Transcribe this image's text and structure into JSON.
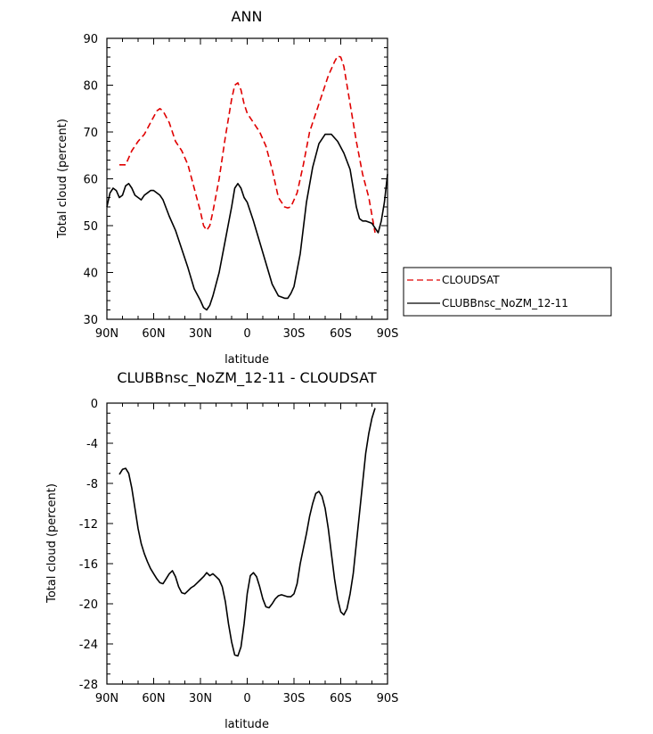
{
  "chart_data": [
    {
      "type": "line",
      "title": "ANN",
      "xlabel": "latitude",
      "ylabel": "Total cloud (percent)",
      "x_tick_labels": [
        "90N",
        "60N",
        "30N",
        "0",
        "30S",
        "60S",
        "90S"
      ],
      "x_tick_values": [
        90,
        60,
        30,
        0,
        -30,
        -60,
        -90
      ],
      "y_tick_labels": [
        "30",
        "40",
        "50",
        "60",
        "70",
        "80",
        "90"
      ],
      "y_tick_values": [
        30,
        40,
        50,
        60,
        70,
        80,
        90
      ],
      "xlim": [
        90,
        -90
      ],
      "ylim": [
        30,
        90
      ],
      "legend_position": "right",
      "series": [
        {
          "name": "CLOUDSAT",
          "color": "#e00000",
          "style": "dashed",
          "x": [
            82,
            78,
            74,
            70,
            66,
            62,
            58,
            56,
            54,
            50,
            46,
            42,
            38,
            34,
            30,
            28,
            26,
            24,
            22,
            18,
            14,
            10,
            8,
            6,
            4,
            2,
            0,
            -4,
            -8,
            -12,
            -16,
            -20,
            -24,
            -26,
            -28,
            -32,
            -36,
            -40,
            -44,
            -48,
            -52,
            -56,
            -58,
            -60,
            -62,
            -66,
            -70,
            -74,
            -78,
            -82
          ],
          "y": [
            63,
            63,
            66,
            68,
            69.5,
            72,
            74.5,
            75,
            74.5,
            72,
            68,
            66,
            63,
            58,
            53,
            50,
            49,
            50,
            53,
            60,
            69,
            77,
            80,
            80.5,
            79,
            76,
            74,
            72,
            70,
            67,
            62,
            56,
            54,
            53.8,
            54,
            57,
            63,
            70,
            74,
            78,
            82,
            85,
            86.2,
            86,
            84,
            76,
            68,
            61,
            56,
            48.5
          ]
        },
        {
          "name": "CLUBBnsc_NoZM_12-11",
          "color": "#000000",
          "style": "solid",
          "x": [
            90,
            88,
            86,
            84,
            82,
            80,
            78,
            76,
            74,
            72,
            70,
            68,
            66,
            64,
            62,
            60,
            58,
            56,
            54,
            50,
            46,
            42,
            38,
            34,
            30,
            28,
            26,
            24,
            22,
            18,
            14,
            10,
            8,
            6,
            4,
            2,
            0,
            -4,
            -8,
            -12,
            -16,
            -20,
            -24,
            -26,
            -28,
            -30,
            -34,
            -38,
            -42,
            -46,
            -50,
            -54,
            -58,
            -62,
            -66,
            -70,
            -72,
            -74,
            -76,
            -80,
            -84,
            -86,
            -88,
            -90
          ],
          "y": [
            54,
            57,
            58,
            57.5,
            56,
            56.5,
            58.5,
            59,
            58,
            56.5,
            56,
            55.5,
            56.5,
            57,
            57.5,
            57.5,
            57,
            56.5,
            55.5,
            52,
            49,
            45,
            41,
            36.5,
            34,
            32.5,
            32,
            33,
            35,
            40,
            47,
            54,
            58,
            59,
            58,
            56,
            55,
            51,
            46.5,
            42,
            37.5,
            35,
            34.5,
            34.5,
            35.5,
            37,
            44,
            55,
            62.5,
            67.5,
            69.5,
            69.5,
            68,
            65.5,
            62,
            54,
            51.5,
            51,
            51,
            50.5,
            48.5,
            51,
            55,
            61
          ]
        }
      ]
    },
    {
      "type": "line",
      "title": "CLUBBnsc_NoZM_12-11 - CLOUDSAT",
      "xlabel": "latitude",
      "ylabel": "Total cloud (percent)",
      "x_tick_labels": [
        "90N",
        "60N",
        "30N",
        "0",
        "30S",
        "60S",
        "90S"
      ],
      "x_tick_values": [
        90,
        60,
        30,
        0,
        -30,
        -60,
        -90
      ],
      "y_tick_labels": [
        "0",
        "-4",
        "-8",
        "-12",
        "-16",
        "-20",
        "-24",
        "-28"
      ],
      "y_tick_values": [
        0,
        -4,
        -8,
        -12,
        -16,
        -20,
        -24,
        -28
      ],
      "xlim": [
        90,
        -90
      ],
      "ylim": [
        -28,
        0
      ],
      "series": [
        {
          "color": "#000000",
          "style": "solid",
          "x": [
            82,
            80,
            78,
            76,
            74,
            72,
            70,
            68,
            66,
            64,
            62,
            60,
            58,
            56,
            54,
            52,
            50,
            48,
            46,
            44,
            42,
            40,
            38,
            36,
            34,
            32,
            30,
            28,
            26,
            24,
            22,
            20,
            18,
            16,
            14,
            12,
            10,
            8,
            6,
            4,
            2,
            0,
            -2,
            -4,
            -6,
            -8,
            -10,
            -12,
            -14,
            -16,
            -18,
            -20,
            -22,
            -24,
            -26,
            -28,
            -30,
            -32,
            -34,
            -36,
            -38,
            -40,
            -42,
            -44,
            -46,
            -48,
            -50,
            -52,
            -54,
            -56,
            -58,
            -60,
            -62,
            -64,
            -66,
            -68,
            -70,
            -72,
            -74,
            -76,
            -78,
            -80,
            -82
          ],
          "y": [
            -7.1,
            -6.6,
            -6.5,
            -7.0,
            -8.5,
            -10.5,
            -12.5,
            -14.0,
            -15.0,
            -15.8,
            -16.5,
            -17.0,
            -17.5,
            -17.9,
            -18.0,
            -17.5,
            -17.0,
            -16.7,
            -17.3,
            -18.3,
            -18.9,
            -19.0,
            -18.7,
            -18.4,
            -18.2,
            -17.9,
            -17.6,
            -17.3,
            -16.9,
            -17.2,
            -17.0,
            -17.3,
            -17.6,
            -18.3,
            -19.8,
            -22.0,
            -23.8,
            -25.1,
            -25.2,
            -24.3,
            -22.0,
            -19.0,
            -17.2,
            -16.9,
            -17.3,
            -18.3,
            -19.5,
            -20.3,
            -20.4,
            -20.0,
            -19.5,
            -19.2,
            -19.1,
            -19.2,
            -19.3,
            -19.3,
            -19.0,
            -18.0,
            -16.0,
            -14.5,
            -13.0,
            -11.3,
            -10.0,
            -9.0,
            -8.8,
            -9.3,
            -10.5,
            -12.5,
            -15.0,
            -17.5,
            -19.5,
            -20.8,
            -21.1,
            -20.5,
            -19.0,
            -17.0,
            -14.0,
            -11.0,
            -8.0,
            -5.0,
            -3.0,
            -1.5,
            -0.5
          ]
        }
      ]
    }
  ]
}
